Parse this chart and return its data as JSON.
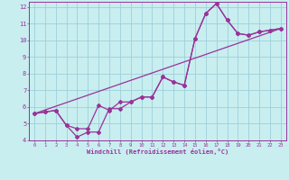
{
  "xlabel": "Windchill (Refroidissement éolien,°C)",
  "bg_color": "#c8eef0",
  "grid_color": "#9ecfda",
  "line_color": "#993399",
  "xlim": [
    -0.5,
    23.5
  ],
  "ylim": [
    4,
    12.3
  ],
  "xticks": [
    0,
    1,
    2,
    3,
    4,
    5,
    6,
    7,
    8,
    9,
    10,
    11,
    12,
    13,
    14,
    15,
    16,
    17,
    18,
    19,
    20,
    21,
    22,
    23
  ],
  "yticks": [
    4,
    5,
    6,
    7,
    8,
    9,
    10,
    11,
    12
  ],
  "line1_x": [
    0,
    1,
    2,
    3,
    4,
    5,
    6,
    7,
    8,
    9,
    10,
    11,
    12,
    13,
    14,
    15,
    16,
    17,
    18,
    19,
    20,
    21,
    22,
    23
  ],
  "line1_y": [
    5.6,
    5.7,
    5.8,
    4.9,
    4.7,
    4.7,
    6.1,
    5.8,
    6.3,
    6.3,
    6.6,
    6.6,
    7.8,
    7.5,
    7.3,
    10.1,
    11.6,
    12.2,
    11.2,
    10.4,
    10.3,
    10.5,
    10.6,
    10.7
  ],
  "line2_x": [
    0,
    1,
    2,
    3,
    4,
    5,
    6,
    7,
    8,
    9,
    10,
    11,
    12,
    13,
    14,
    15,
    16,
    17,
    18,
    19,
    20,
    21,
    22,
    23
  ],
  "line2_y": [
    5.6,
    5.7,
    5.8,
    4.9,
    4.2,
    4.5,
    4.5,
    5.9,
    5.9,
    6.3,
    6.6,
    6.6,
    7.8,
    7.5,
    7.3,
    10.1,
    11.6,
    12.2,
    11.2,
    10.4,
    10.3,
    10.5,
    10.6,
    10.7
  ],
  "line3_x": [
    0,
    23
  ],
  "line3_y": [
    5.6,
    10.7
  ]
}
